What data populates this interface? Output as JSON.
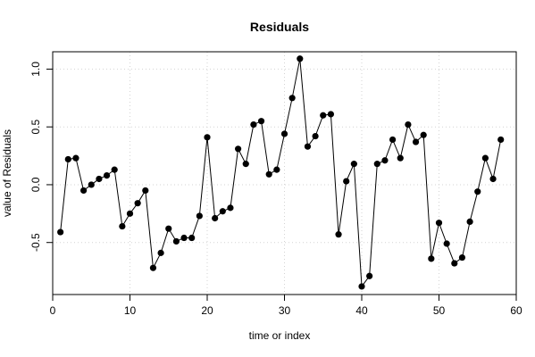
{
  "chart_data": {
    "type": "line",
    "title": "Residuals",
    "xlabel": "time or index",
    "ylabel": "value of Residuals",
    "xlim": [
      0,
      60
    ],
    "ylim": [
      -0.95,
      1.15
    ],
    "x_ticks": [
      0,
      10,
      20,
      30,
      40,
      50,
      60
    ],
    "y_ticks": [
      -0.5,
      0.0,
      0.5,
      1.0
    ],
    "y_tick_labels": [
      "-0.5",
      "0.0",
      "0.5",
      "1.0"
    ],
    "grid": true,
    "series": [
      {
        "x": [
          1,
          2,
          3,
          4,
          5,
          6,
          7,
          8,
          9,
          10,
          11,
          12,
          13,
          14,
          15,
          16,
          17,
          18,
          19,
          20,
          21,
          22,
          23,
          24,
          25,
          26,
          27,
          28,
          29,
          30,
          31,
          32,
          33,
          34,
          35,
          36,
          37,
          38,
          39,
          40,
          41,
          42,
          43,
          44,
          45,
          46,
          47,
          48,
          49,
          50,
          51,
          52,
          53,
          54,
          55,
          56,
          57,
          58
        ],
        "values": [
          -0.41,
          0.22,
          0.23,
          -0.05,
          0.0,
          0.05,
          0.08,
          0.13,
          -0.36,
          -0.25,
          -0.16,
          -0.05,
          -0.72,
          -0.59,
          -0.38,
          -0.49,
          -0.46,
          -0.46,
          -0.27,
          0.41,
          -0.29,
          -0.23,
          -0.2,
          0.31,
          0.18,
          0.52,
          0.55,
          0.09,
          0.13,
          0.44,
          0.75,
          1.09,
          0.33,
          0.42,
          0.6,
          0.61,
          -0.43,
          0.03,
          0.18,
          -0.88,
          -0.79,
          0.18,
          0.21,
          0.39,
          0.23,
          0.52,
          0.37,
          0.43,
          -0.64,
          -0.33,
          -0.51,
          -0.68,
          -0.63,
          -0.32,
          -0.06,
          0.23,
          0.05,
          0.39
        ]
      }
    ]
  }
}
